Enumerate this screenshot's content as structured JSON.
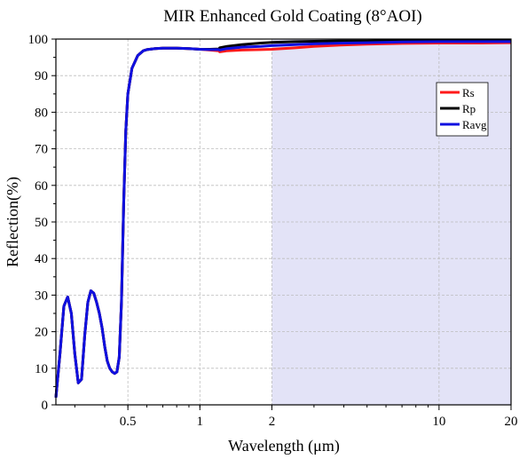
{
  "chart_data": {
    "type": "line",
    "title": "MIR Enhanced Gold Coating (8°AOI)",
    "xlabel": "Wavelength (μm)",
    "ylabel": "Reflection(%)",
    "xscale": "log",
    "xlim": [
      0.25,
      20
    ],
    "ylim": [
      0,
      100
    ],
    "x_ticks": [
      0.5,
      1,
      2,
      10,
      20
    ],
    "y_ticks": [
      0,
      10,
      20,
      30,
      40,
      50,
      60,
      70,
      80,
      90,
      100
    ],
    "grid": true,
    "legend_position": "top-right",
    "highlight_region": {
      "x_from": 2,
      "x_to": 20,
      "color": "#e3e3f7"
    },
    "series": [
      {
        "name": "Rs",
        "color": "#ff1a1a",
        "x": [
          0.25,
          0.26,
          0.27,
          0.28,
          0.29,
          0.3,
          0.31,
          0.32,
          0.33,
          0.34,
          0.35,
          0.36,
          0.37,
          0.38,
          0.39,
          0.4,
          0.41,
          0.42,
          0.43,
          0.44,
          0.45,
          0.46,
          0.47,
          0.48,
          0.49,
          0.5,
          0.52,
          0.55,
          0.58,
          0.6,
          0.65,
          0.7,
          0.8,
          0.9,
          1.0,
          1.1,
          1.2,
          1.21,
          1.3,
          1.5,
          1.8,
          2.0,
          2.5,
          3,
          4,
          5,
          7,
          10,
          15,
          20
        ],
        "values": [
          2,
          14,
          27,
          29.5,
          25,
          14,
          6,
          7,
          19,
          28,
          31.2,
          30.5,
          28,
          25,
          21,
          16,
          12,
          10,
          9,
          8.6,
          9,
          13,
          28,
          55,
          75,
          85,
          92,
          95.5,
          96.8,
          97.1,
          97.4,
          97.5,
          97.5,
          97.4,
          97.2,
          97.0,
          96.8,
          96.5,
          96.8,
          97.0,
          97.1,
          97.2,
          97.6,
          98.0,
          98.4,
          98.6,
          98.8,
          98.9,
          98.9,
          99.0
        ]
      },
      {
        "name": "Rp",
        "color": "#000000",
        "x": [
          0.25,
          0.26,
          0.27,
          0.28,
          0.29,
          0.3,
          0.31,
          0.32,
          0.33,
          0.34,
          0.35,
          0.36,
          0.37,
          0.38,
          0.39,
          0.4,
          0.41,
          0.42,
          0.43,
          0.44,
          0.45,
          0.46,
          0.47,
          0.48,
          0.49,
          0.5,
          0.52,
          0.55,
          0.58,
          0.6,
          0.65,
          0.7,
          0.8,
          0.9,
          1.0,
          1.1,
          1.2,
          1.21,
          1.3,
          1.5,
          1.8,
          2.0,
          2.5,
          3,
          4,
          5,
          7,
          10,
          15,
          20
        ],
        "values": [
          2,
          14,
          27,
          29.5,
          25,
          14,
          6,
          7,
          19,
          28,
          31.2,
          30.5,
          28,
          25,
          21,
          16,
          12,
          10,
          9,
          8.6,
          9,
          13,
          28,
          55,
          75,
          85,
          92,
          95.5,
          96.8,
          97.1,
          97.4,
          97.5,
          97.5,
          97.4,
          97.2,
          97.2,
          97.3,
          97.6,
          98.0,
          98.5,
          98.9,
          99.1,
          99.3,
          99.4,
          99.5,
          99.5,
          99.6,
          99.6,
          99.6,
          99.6
        ]
      },
      {
        "name": "Ravg",
        "color": "#1010e0",
        "x": [
          0.25,
          0.26,
          0.27,
          0.28,
          0.29,
          0.3,
          0.31,
          0.32,
          0.33,
          0.34,
          0.35,
          0.36,
          0.37,
          0.38,
          0.39,
          0.4,
          0.41,
          0.42,
          0.43,
          0.44,
          0.45,
          0.46,
          0.47,
          0.48,
          0.49,
          0.5,
          0.52,
          0.55,
          0.58,
          0.6,
          0.65,
          0.7,
          0.8,
          0.9,
          1.0,
          1.1,
          1.2,
          1.21,
          1.3,
          1.5,
          1.8,
          2.0,
          2.5,
          3,
          4,
          5,
          7,
          10,
          15,
          20
        ],
        "values": [
          2,
          14,
          27,
          29.5,
          25,
          14,
          6,
          7,
          19,
          28,
          31.2,
          30.5,
          28,
          25,
          21,
          16,
          12,
          10,
          9,
          8.6,
          9,
          13,
          28,
          55,
          75,
          85,
          92,
          95.5,
          96.8,
          97.1,
          97.4,
          97.5,
          97.5,
          97.4,
          97.2,
          97.1,
          97.1,
          97.0,
          97.4,
          97.8,
          98.0,
          98.2,
          98.5,
          98.7,
          98.9,
          99.0,
          99.2,
          99.3,
          99.3,
          99.3
        ]
      }
    ]
  }
}
